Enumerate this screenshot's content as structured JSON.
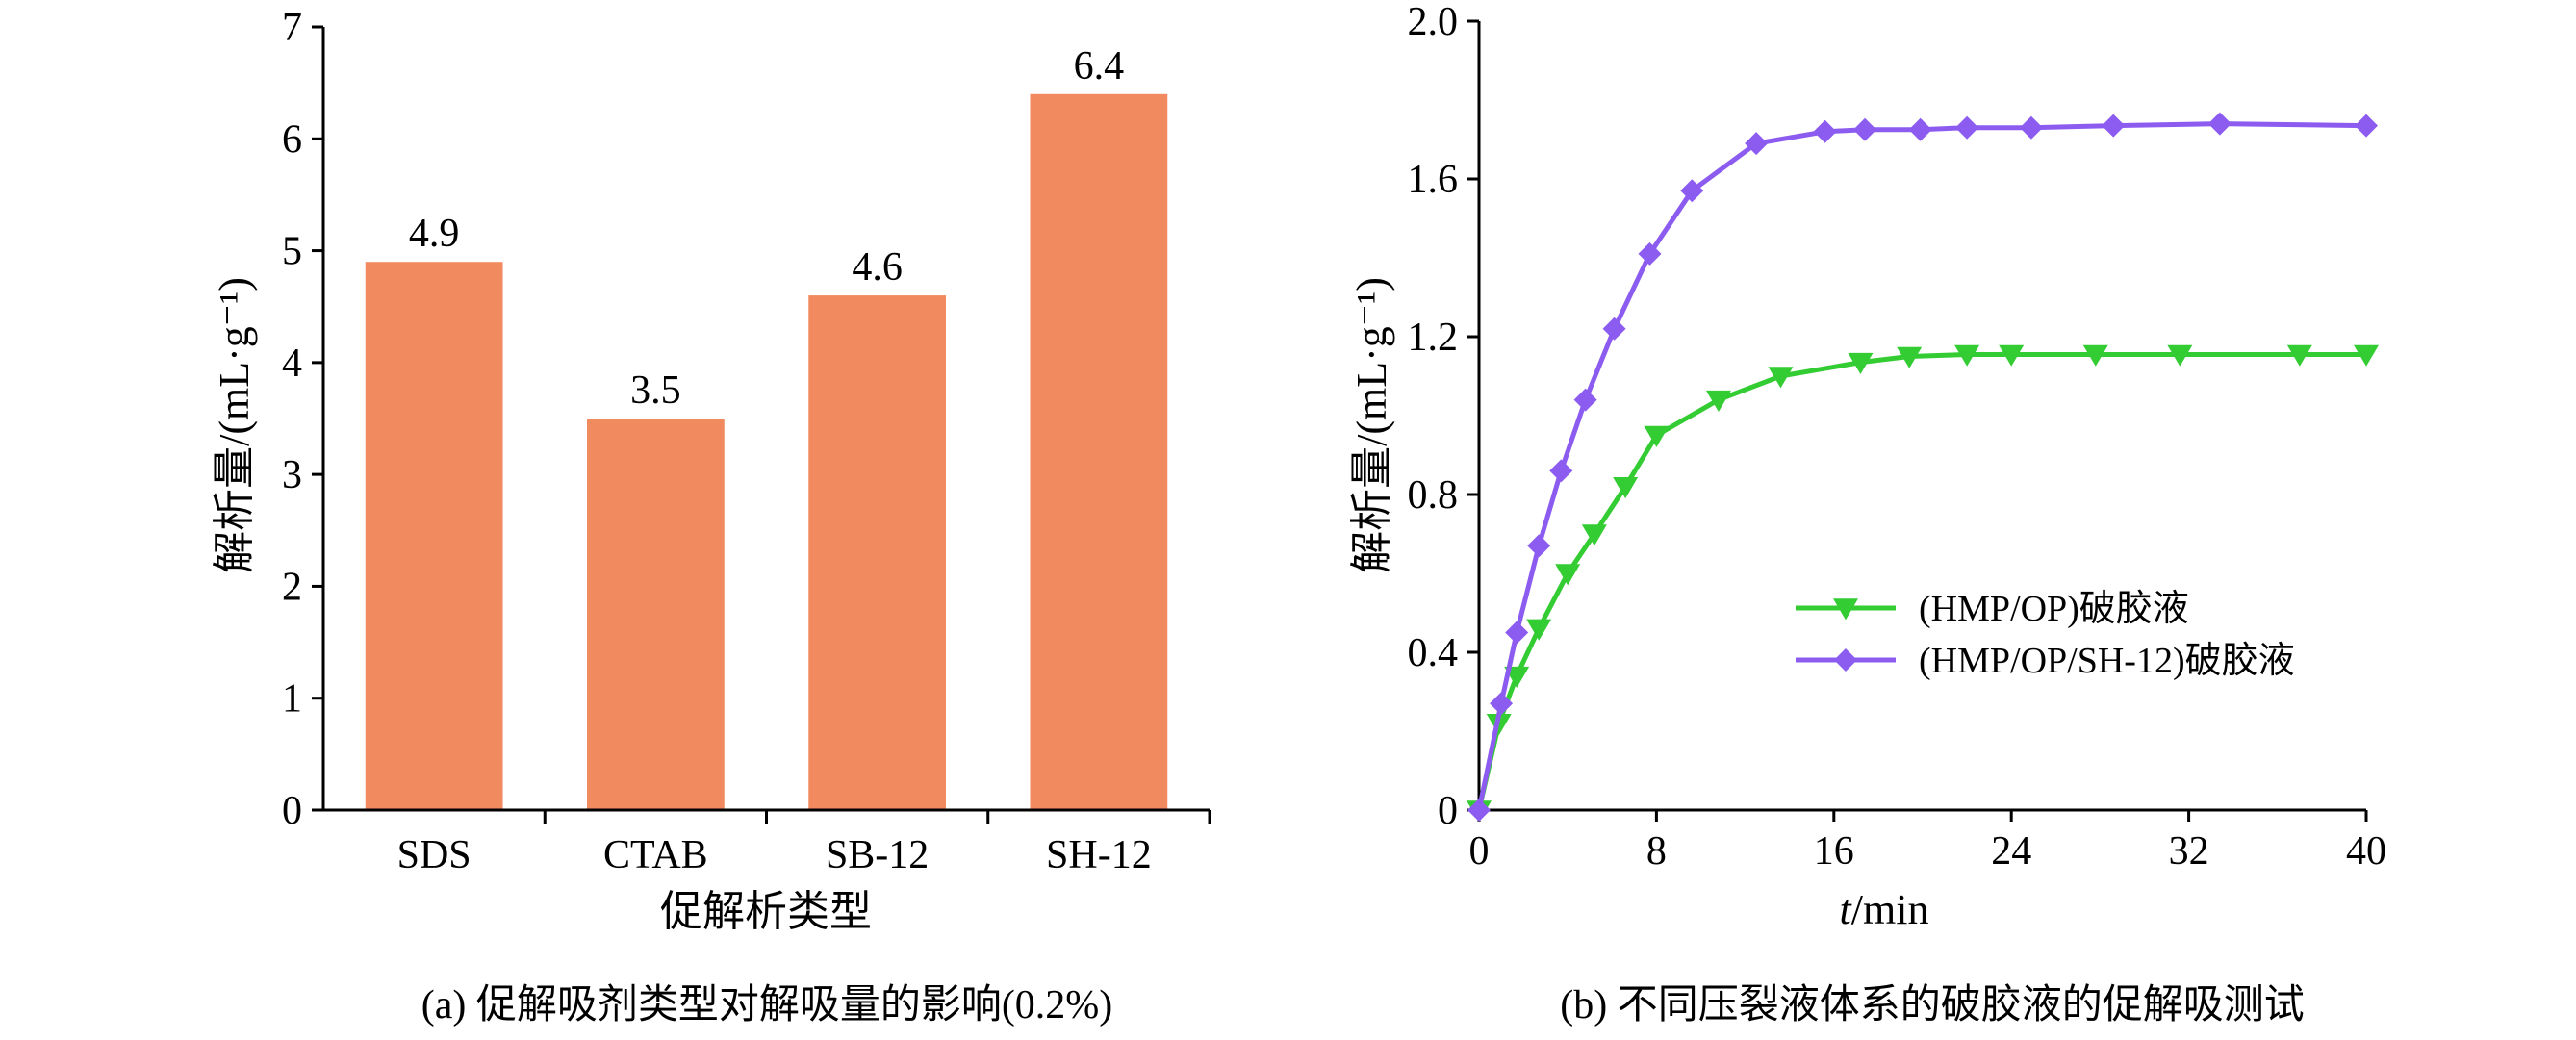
{
  "captions": {
    "a": "(a) 促解吸剂类型对解吸量的影响(0.2%)",
    "b": "(b) 不同压裂液体系的破胶液的促解吸测试"
  },
  "chart_data": [
    {
      "type": "bar",
      "categories": [
        "SDS",
        "CTAB",
        "SB-12",
        "SH-12"
      ],
      "values": [
        4.9,
        3.5,
        4.6,
        6.4
      ],
      "data_labels": [
        "4.9",
        "3.5",
        "4.6",
        "6.4"
      ],
      "xlabel": "促解析类型",
      "ylabel": "解析量/(mL·g⁻¹)",
      "ylim": [
        0,
        7
      ],
      "yticks": [
        "0",
        "1",
        "2",
        "3",
        "4",
        "5",
        "6",
        "7"
      ],
      "bar_color": "#F28A60",
      "grid": false
    },
    {
      "type": "line",
      "xlabel_italic": "t",
      "xlabel_rest": "/min",
      "ylabel": "解析量/(mL·g⁻¹)",
      "xlim": [
        0,
        40
      ],
      "ylim": [
        0,
        2.0
      ],
      "xticks": [
        "0",
        "8",
        "16",
        "24",
        "32",
        "40"
      ],
      "yticks": [
        "0",
        "0.4",
        "0.8",
        "1.2",
        "1.6",
        "2.0"
      ],
      "legend_position": "center-right",
      "grid": false,
      "series": [
        {
          "name": "(HMP/OP)破胶液",
          "color": "#33CC33",
          "marker": "triangle-down",
          "x": [
            0,
            0.9,
            1.7,
            2.7,
            4.0,
            5.2,
            6.6,
            8.0,
            10.8,
            13.6,
            17.2,
            19.4,
            22.0,
            24.0,
            27.8,
            31.6,
            37.0,
            40.0
          ],
          "y": [
            0.0,
            0.22,
            0.34,
            0.46,
            0.6,
            0.7,
            0.82,
            0.95,
            1.04,
            1.1,
            1.135,
            1.15,
            1.155,
            1.155,
            1.155,
            1.155,
            1.155,
            1.155
          ]
        },
        {
          "name": "(HMP/OP/SH-12)破胶液",
          "color": "#8C5CF0",
          "marker": "diamond",
          "x": [
            0,
            1.0,
            1.7,
            2.7,
            3.7,
            4.8,
            6.1,
            7.7,
            9.6,
            12.5,
            15.6,
            17.4,
            19.9,
            22.0,
            24.9,
            28.6,
            33.4,
            40.0
          ],
          "y": [
            0.0,
            0.27,
            0.45,
            0.67,
            0.86,
            1.04,
            1.22,
            1.41,
            1.57,
            1.69,
            1.72,
            1.725,
            1.725,
            1.73,
            1.73,
            1.735,
            1.74,
            1.735
          ]
        }
      ]
    }
  ]
}
